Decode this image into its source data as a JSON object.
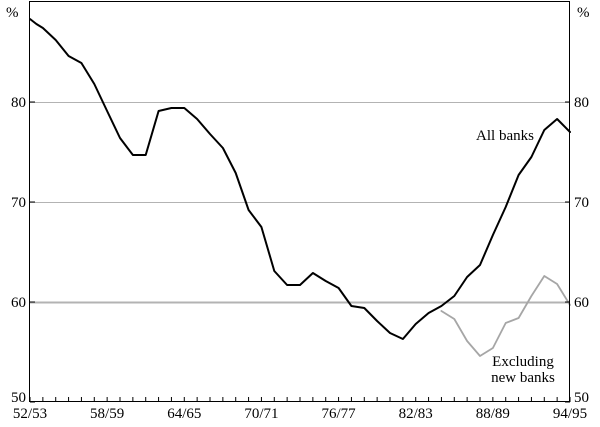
{
  "chart_data": {
    "type": "line",
    "unit_left": "%",
    "unit_right": "%",
    "ylim": [
      50,
      90
    ],
    "y_ticks": [
      50,
      60,
      70,
      80
    ],
    "x_tick_labels": [
      "52/53",
      "58/59",
      "64/65",
      "70/71",
      "76/77",
      "82/83",
      "88/89",
      "94/95"
    ],
    "x_tick_index": [
      0,
      6,
      12,
      18,
      24,
      30,
      36,
      42
    ],
    "x_range": [
      0,
      42
    ],
    "grid": true,
    "reference_line": 60,
    "colors": {
      "all_banks": "#000000",
      "excluding_new_banks": "#a6a6a6",
      "grid": "#b3b3b3",
      "reference": "#b3b3b3"
    },
    "series": [
      {
        "key": "all_banks",
        "name": "All banks",
        "x": [
          0,
          0.5,
          1,
          2,
          3,
          4,
          5,
          6,
          7,
          8,
          9,
          10,
          11,
          12,
          13,
          14,
          15,
          16,
          17,
          18,
          19,
          20,
          21,
          22,
          23,
          24,
          25,
          26,
          27,
          28,
          29,
          30,
          31,
          32,
          33,
          34,
          35,
          36,
          37,
          38,
          39,
          40,
          41,
          42
        ],
        "values": [
          88.3,
          87.8,
          87.4,
          86.2,
          84.6,
          83.9,
          81.8,
          79.1,
          76.4,
          74.7,
          74.7,
          79.1,
          79.4,
          79.4,
          78.3,
          76.8,
          75.4,
          72.9,
          69.2,
          67.5,
          63.1,
          61.7,
          61.7,
          62.9,
          62.1,
          61.4,
          59.6,
          59.4,
          58.1,
          56.9,
          56.3,
          57.8,
          58.9,
          59.6,
          60.6,
          62.5,
          63.7,
          66.7,
          69.5,
          72.7,
          74.5,
          77.2,
          78.3,
          77.0
        ]
      },
      {
        "key": "excluding_new_banks",
        "name": "Excluding new banks",
        "x": [
          32,
          33,
          34,
          35,
          36,
          37,
          38,
          39,
          40,
          41,
          42
        ],
        "values": [
          59.1,
          58.3,
          56.1,
          54.6,
          55.4,
          57.9,
          58.4,
          60.6,
          62.6,
          61.8,
          59.7
        ]
      }
    ],
    "series_label_lines": {
      "all_banks": [
        "All banks"
      ],
      "excluding_new_banks": [
        "Excluding",
        "new banks"
      ]
    }
  }
}
